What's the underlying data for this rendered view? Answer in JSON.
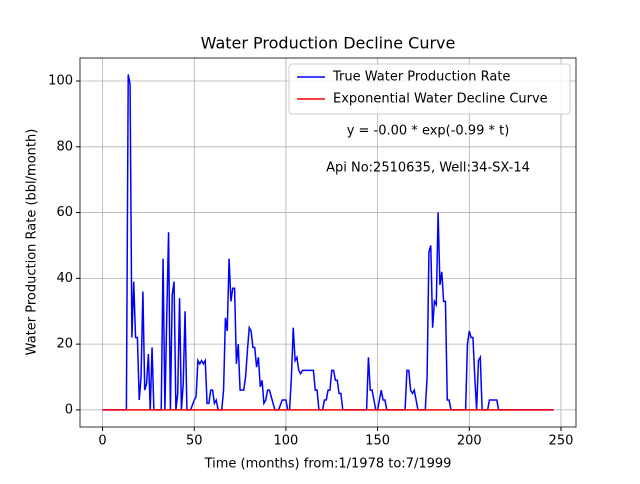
{
  "chart_data": {
    "type": "line",
    "title": "Water Production Decline Curve",
    "x_label": "Time (months) from:1/1978 to:7/1999",
    "y_label": "Water Production Rate (bbl/month)",
    "annotations": [
      "y = -0.00 * exp(-0.99 * t)",
      "Api No:2510635, Well:34-SX-14"
    ],
    "xlim": [
      -12.3,
      258.2
    ],
    "ylim": [
      -5.2,
      107
    ],
    "xticks": [
      0,
      50,
      100,
      150,
      200,
      250
    ],
    "yticks": [
      0,
      20,
      40,
      60,
      80,
      100
    ],
    "grid": true,
    "legend": "upper right",
    "series": [
      {
        "name": "True Water Production Rate",
        "color": "#0000ff",
        "x": [
          0,
          13,
          14,
          15,
          16,
          17,
          18,
          19,
          20,
          21,
          22,
          23,
          24,
          25,
          26,
          27,
          28,
          30,
          32,
          33,
          34,
          35,
          36,
          37,
          38,
          39,
          40,
          41,
          42,
          43,
          44,
          45,
          46,
          48,
          50,
          51,
          52,
          53,
          54,
          55,
          56,
          57,
          58,
          59,
          60,
          61,
          62,
          63,
          65,
          66,
          67,
          68,
          69,
          70,
          71,
          72,
          73,
          74,
          75,
          76,
          77,
          78,
          79,
          80,
          81,
          82,
          83,
          84,
          85,
          86,
          87,
          88,
          89,
          90,
          91,
          92,
          93,
          94,
          96,
          98,
          99,
          100,
          101,
          102,
          103,
          104,
          105,
          106,
          107,
          108,
          109,
          115,
          116,
          117,
          118,
          120,
          121,
          122,
          123,
          124,
          125,
          126,
          127,
          128,
          129,
          130,
          131,
          144,
          145,
          146,
          147,
          148,
          149,
          150,
          152,
          153,
          154,
          155,
          165,
          166,
          167,
          168,
          169,
          170,
          171,
          172,
          176,
          177,
          178,
          179,
          180,
          181,
          182,
          183,
          184,
          185,
          186,
          187,
          188,
          189,
          190,
          198,
          199,
          200,
          201,
          202,
          203,
          204,
          205,
          206,
          207,
          210,
          211,
          212,
          215,
          216,
          246
        ],
        "values": [
          0,
          0,
          102,
          99,
          22,
          39,
          22,
          22,
          3,
          10,
          36,
          6,
          8,
          17,
          0,
          19,
          0,
          0,
          0,
          46,
          0,
          28,
          54,
          0,
          35,
          39,
          0,
          5,
          34,
          0,
          8,
          30,
          0,
          0,
          3,
          4,
          15,
          14,
          15,
          14,
          15,
          2,
          2,
          6,
          6,
          2,
          3,
          0,
          0,
          6,
          28,
          24,
          46,
          33,
          37,
          37,
          14,
          20,
          6,
          6,
          6,
          10,
          18,
          25,
          24,
          19,
          19,
          13,
          16,
          7,
          9,
          2,
          3,
          6,
          6,
          4,
          2,
          0,
          0,
          3,
          3,
          3,
          0,
          0,
          10,
          25,
          15,
          16,
          12,
          11,
          12,
          12,
          6,
          6,
          0,
          0,
          3,
          3,
          6,
          6,
          12,
          12,
          9,
          9,
          5,
          5,
          0,
          0,
          16,
          6,
          6,
          3,
          0,
          0,
          6,
          3,
          3,
          0,
          0,
          12,
          12,
          6,
          5,
          6,
          3,
          0,
          0,
          10,
          48,
          50,
          25,
          33,
          32,
          60,
          38,
          42,
          33,
          33,
          3,
          3,
          0,
          0,
          20,
          24,
          22,
          22,
          10,
          0,
          15,
          16,
          0,
          0,
          3,
          3,
          3,
          0,
          0
        ]
      },
      {
        "name": "Exponential Water Decline Curve",
        "color": "#ff0000",
        "x": [
          0,
          246
        ],
        "values": [
          0,
          0
        ]
      }
    ]
  }
}
